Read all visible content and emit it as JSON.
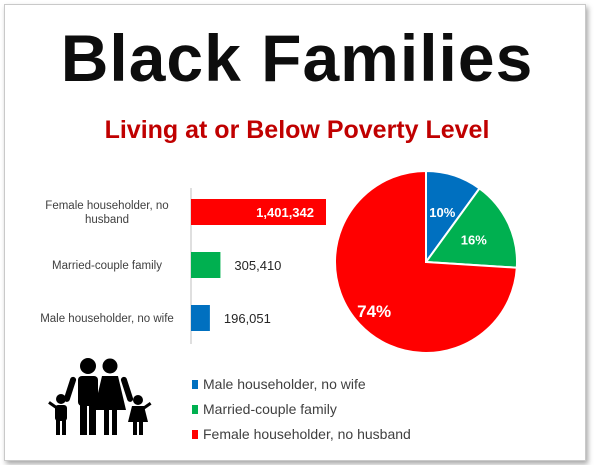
{
  "title": "Black Families",
  "subtitle": "Living at or Below Poverty Level",
  "colors": {
    "male": "#0070c0",
    "married": "#00b050",
    "female": "#ff0000",
    "title": "#0d0d0d",
    "subtitle": "#c00000"
  },
  "icons": [
    "family-icon"
  ],
  "chart_data": [
    {
      "type": "bar",
      "orientation": "horizontal",
      "categories": [
        "Female householder, no husband",
        "Married-couple family",
        "Male householder, no wife"
      ],
      "category_lines": [
        [
          "Female householder, no",
          "husband"
        ],
        [
          "Married-couple family"
        ],
        [
          "Male householder, no wife"
        ]
      ],
      "values": [
        1401342,
        305410,
        196051
      ],
      "value_labels": [
        "1,401,342",
        "305,410",
        "196,051"
      ],
      "colors": [
        "#ff0000",
        "#00b050",
        "#0070c0"
      ],
      "xlim": [
        0,
        1401342
      ]
    },
    {
      "type": "pie",
      "labels": [
        "Male householder, no wife",
        "Married-couple family",
        "Female householder, no husband"
      ],
      "values": [
        10,
        16,
        74
      ],
      "value_labels": [
        "10%",
        "16%",
        "74%"
      ],
      "colors": [
        "#0070c0",
        "#00b050",
        "#ff0000"
      ],
      "legend": {
        "position": "bottom",
        "entries": [
          "Male householder, no wife",
          "Married-couple family",
          "Female householder, no husband"
        ]
      }
    }
  ]
}
